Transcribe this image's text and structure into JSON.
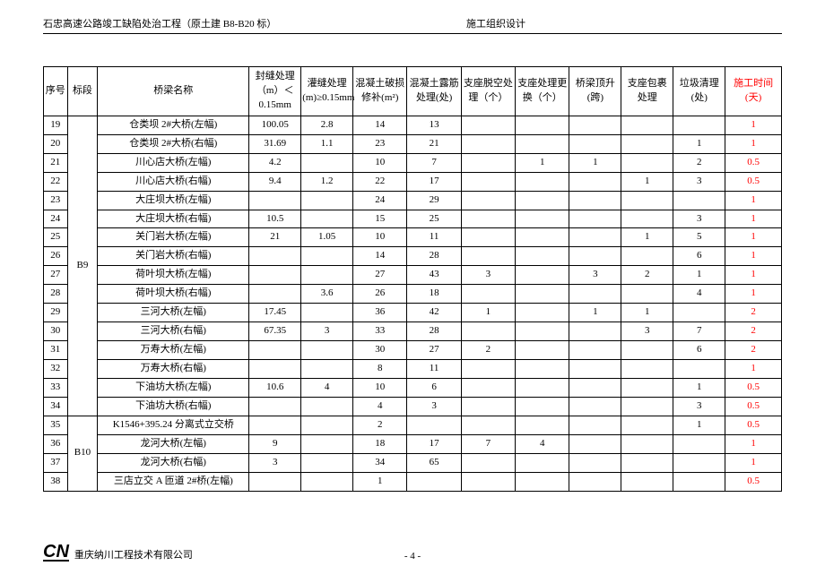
{
  "header": {
    "left": "石忠高速公路竣工缺陷处治工程（原土建 B8-B20 标）",
    "right": "施工组织设计"
  },
  "columns": [
    "序号",
    "标段",
    "桥梁名称",
    "封缝处理（m）＜0.15mm",
    "灌缝处理(m)≥0.15mm",
    "混凝土破损修补(m²)",
    "混凝土露筋处理(处)",
    "支座脱空处理（个）",
    "支座处理更换（个）",
    "桥梁顶升(跨)",
    "支座包裹处理",
    "垃圾清理(处)",
    "施工时间(天)"
  ],
  "sections": [
    {
      "label": "B9",
      "rows": [
        {
          "seq": "19",
          "name": "仓类坝 2#大桥(左幅)",
          "c": [
            "100.05",
            "2.8",
            "14",
            "13",
            "",
            "",
            "",
            "",
            "",
            "1"
          ]
        },
        {
          "seq": "20",
          "name": "仓类坝 2#大桥(右幅)",
          "c": [
            "31.69",
            "1.1",
            "23",
            "21",
            "",
            "",
            "",
            "",
            "1",
            "1"
          ]
        },
        {
          "seq": "21",
          "name": "川心店大桥(左幅)",
          "c": [
            "4.2",
            "",
            "10",
            "7",
            "",
            "1",
            "1",
            "",
            "2",
            "0.5"
          ]
        },
        {
          "seq": "22",
          "name": "川心店大桥(右幅)",
          "c": [
            "9.4",
            "1.2",
            "22",
            "17",
            "",
            "",
            "",
            "1",
            "3",
            "0.5"
          ]
        },
        {
          "seq": "23",
          "name": "大庄坝大桥(左幅)",
          "c": [
            "",
            "",
            "24",
            "29",
            "",
            "",
            "",
            "",
            "",
            "1"
          ]
        },
        {
          "seq": "24",
          "name": "大庄坝大桥(右幅)",
          "c": [
            "10.5",
            "",
            "15",
            "25",
            "",
            "",
            "",
            "",
            "3",
            "1"
          ]
        },
        {
          "seq": "25",
          "name": "关门岩大桥(左幅)",
          "c": [
            "21",
            "1.05",
            "10",
            "11",
            "",
            "",
            "",
            "1",
            "5",
            "1"
          ]
        },
        {
          "seq": "26",
          "name": "关门岩大桥(右幅)",
          "c": [
            "",
            "",
            "14",
            "28",
            "",
            "",
            "",
            "",
            "6",
            "1"
          ]
        },
        {
          "seq": "27",
          "name": "荷叶坝大桥(左幅)",
          "c": [
            "",
            "",
            "27",
            "43",
            "3",
            "",
            "3",
            "2",
            "1",
            "1"
          ]
        },
        {
          "seq": "28",
          "name": "荷叶坝大桥(右幅)",
          "c": [
            "",
            "3.6",
            "26",
            "18",
            "",
            "",
            "",
            "",
            "4",
            "1"
          ]
        },
        {
          "seq": "29",
          "name": "三河大桥(左幅)",
          "c": [
            "17.45",
            "",
            "36",
            "42",
            "1",
            "",
            "1",
            "1",
            "",
            "2"
          ]
        },
        {
          "seq": "30",
          "name": "三河大桥(右幅)",
          "c": [
            "67.35",
            "3",
            "33",
            "28",
            "",
            "",
            "",
            "3",
            "7",
            "2"
          ]
        },
        {
          "seq": "31",
          "name": "万寿大桥(左幅)",
          "c": [
            "",
            "",
            "30",
            "27",
            "2",
            "",
            "",
            "",
            "6",
            "2"
          ]
        },
        {
          "seq": "32",
          "name": "万寿大桥(右幅)",
          "c": [
            "",
            "",
            "8",
            "11",
            "",
            "",
            "",
            "",
            "",
            "1"
          ]
        },
        {
          "seq": "33",
          "name": "下油坊大桥(左幅)",
          "c": [
            "10.6",
            "4",
            "10",
            "6",
            "",
            "",
            "",
            "",
            "1",
            "0.5"
          ]
        },
        {
          "seq": "34",
          "name": "下油坊大桥(右幅)",
          "c": [
            "",
            "",
            "4",
            "3",
            "",
            "",
            "",
            "",
            "3",
            "0.5"
          ]
        }
      ]
    },
    {
      "label": "B10",
      "rows": [
        {
          "seq": "35",
          "name": "K1546+395.24 分离式立交桥",
          "c": [
            "",
            "",
            "2",
            "",
            "",
            "",
            "",
            "",
            "1",
            "0.5"
          ]
        },
        {
          "seq": "36",
          "name": "龙河大桥(左幅)",
          "c": [
            "9",
            "",
            "18",
            "17",
            "7",
            "4",
            "",
            "",
            "",
            "1"
          ]
        },
        {
          "seq": "37",
          "name": "龙河大桥(右幅)",
          "c": [
            "3",
            "",
            "34",
            "65",
            "",
            "",
            "",
            "",
            "",
            "1"
          ]
        },
        {
          "seq": "38",
          "name": "三店立交 A 匝道 2#桥(左幅)",
          "c": [
            "",
            "",
            "1",
            "",
            "",
            "",
            "",
            "",
            "",
            "0.5"
          ]
        }
      ]
    }
  ],
  "footer": {
    "logo": "CN",
    "company": "重庆纳川工程技术有限公司",
    "pageNum": "- 4 -"
  }
}
